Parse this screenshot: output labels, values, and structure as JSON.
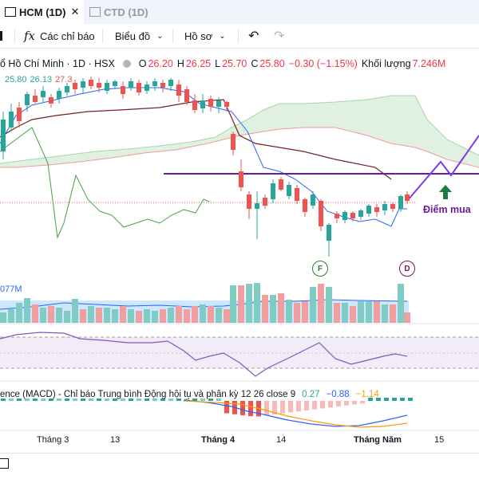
{
  "tabs": [
    {
      "label": "HCM (1D)",
      "close": "✕",
      "active": true
    },
    {
      "label": "CTD (1D)",
      "active": false
    }
  ],
  "toolbar": {
    "indicators_label": "Các chỉ báo",
    "chart_type_label": "Biểu đồ",
    "profile_label": "Hồ sơ"
  },
  "legend": {
    "title": "ổ Hồ Chí Minh · 1D · HSX",
    "open_label": "O",
    "open": "26.20",
    "high_label": "H",
    "high": "26.25",
    "low_label": "L",
    "low": "25.70",
    "close_label": "C",
    "close": "25.80",
    "change": "−0.30 (−1.15%)",
    "volume_label": "Khối lượng",
    "volume": "7.246M"
  },
  "indicator_values": {
    "v1": "25.80",
    "v2": "26.13",
    "v3": "27.3"
  },
  "volume_value": "077M",
  "annotations": {
    "buy_label": "Điểm mua",
    "f_label": "F",
    "d_label": "D"
  },
  "macd": {
    "title": "ence (MACD) - Chỉ báo Trung bình Động hội tụ và phân kỳ 12 26 close 9",
    "v1": "0.27",
    "v2": "−0.88",
    "v3": "−1.14"
  },
  "xaxis": {
    "labels": [
      {
        "text": "Tháng 3",
        "bold": false
      },
      {
        "text": "13",
        "bold": false
      },
      {
        "text": "Tháng 4",
        "bold": true
      },
      {
        "text": "14",
        "bold": false
      },
      {
        "text": "Tháng Năm",
        "bold": true
      },
      {
        "text": "15",
        "bold": false
      }
    ]
  },
  "colors": {
    "up": "#26a69a",
    "down": "#ef5350",
    "conversion": "#2962ff",
    "base": "#7b1f1f",
    "lagging": "#43a047",
    "cloud_up": "#a5d6a7",
    "cloud_down": "#ef9a9a",
    "drawing": "#6a1b9a",
    "rsi": "#7e57c2",
    "macd_line": "#2962ff",
    "signal_line": "#ff9800"
  }
}
